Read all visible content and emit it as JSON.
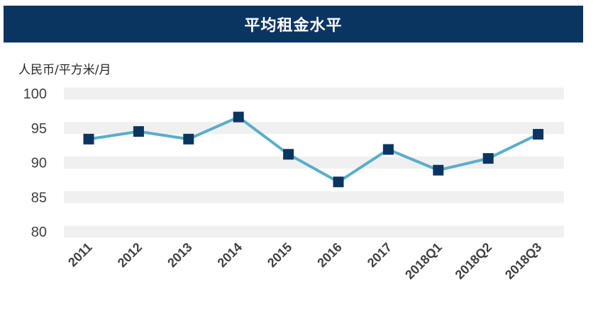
{
  "chart_data": {
    "type": "line",
    "title": "平均租金水平",
    "ylabel": "人民币/平方米/月",
    "xlabel": "",
    "categories": [
      "2011",
      "2012",
      "2013",
      "2014",
      "2015",
      "2016",
      "2017",
      "2018Q1",
      "2018Q2",
      "2018Q3"
    ],
    "series": [
      {
        "values": [
          93.4,
          94.5,
          93.4,
          96.6,
          91.2,
          87.2,
          91.9,
          88.9,
          90.6,
          94.1
        ]
      }
    ],
    "ylim": [
      80,
      100
    ],
    "yticks": [
      "80",
      "85",
      "90",
      "95",
      "100"
    ],
    "grid": "banded",
    "legend": "none",
    "colors": {
      "title_bar": "#0b3561",
      "line": "#5aaec9",
      "marker": "#0b3561",
      "band": "#f0f0f0",
      "tick_text": "#404040"
    }
  }
}
